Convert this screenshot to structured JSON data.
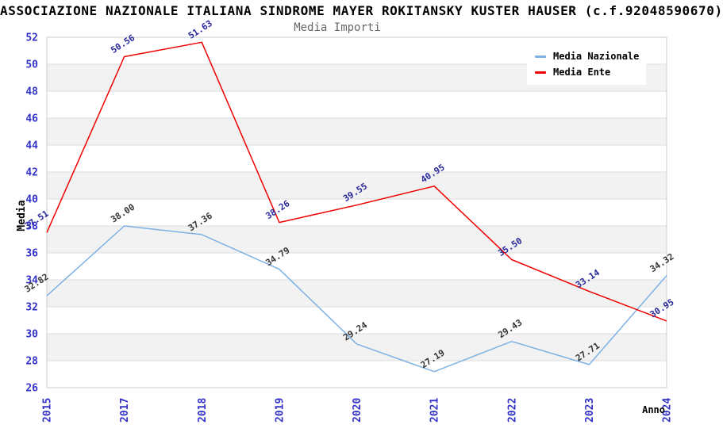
{
  "chart_data": {
    "type": "line",
    "title": "ASSOCIAZIONE NAZIONALE ITALIANA SINDROME MAYER ROKITANSKY KUSTER HAUSER (c.f.92048590670)",
    "subtitle": "Media Importi",
    "xlabel": "Anno",
    "ylabel": "Media",
    "categories": [
      "2015",
      "2017",
      "2018",
      "2019",
      "2020",
      "2021",
      "2022",
      "2023",
      "2024"
    ],
    "ylim": [
      26,
      52
    ],
    "ytick_step": 2,
    "grid": "horizontal",
    "band_fill": "alternating",
    "legend_position": "top-right",
    "series": [
      {
        "name": "Media Nazionale",
        "color": "#7db1e4",
        "label_color": "#333333",
        "values": [
          32.82,
          38.0,
          37.36,
          34.79,
          29.24,
          27.19,
          29.43,
          27.71,
          34.32
        ]
      },
      {
        "name": "Media Ente",
        "color": "#f00000",
        "label_color": "#28289c",
        "values": [
          37.51,
          50.56,
          51.63,
          38.26,
          39.55,
          40.95,
          35.5,
          33.14,
          30.95
        ]
      }
    ]
  },
  "colors": {
    "background": "#ffffff",
    "band_gray": "#f2f2f2",
    "gridline": "#dcdcdc",
    "plot_border": "#cccccc",
    "axis_tick_text": "#3232c8",
    "axis_title_text": "#000000",
    "subtitle_text": "#666666",
    "title_text": "#000000"
  }
}
